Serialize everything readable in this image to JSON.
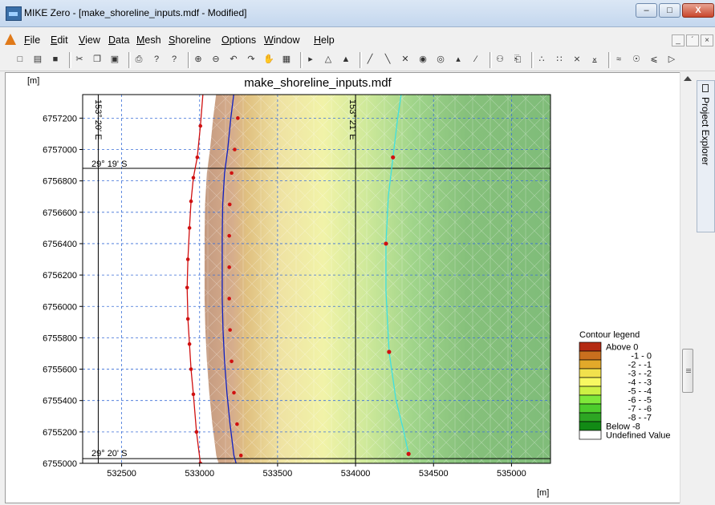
{
  "window": {
    "title": "MIKE Zero - [make_shoreline_inputs.mdf - Modified]",
    "min_symbol": "–",
    "max_symbol": "□",
    "close_symbol": "X"
  },
  "menu": {
    "items": [
      {
        "label": "File",
        "u": "F",
        "rest": "ile"
      },
      {
        "label": "Edit",
        "u": "E",
        "rest": "dit"
      },
      {
        "label": "View",
        "u": "V",
        "rest": "iew"
      },
      {
        "label": "Data",
        "u": "D",
        "rest": "ata"
      },
      {
        "label": "Mesh",
        "u": "M",
        "rest": "esh"
      },
      {
        "label": "Shoreline",
        "u": "S",
        "rest": "horeline"
      },
      {
        "label": "Options",
        "u": "O",
        "rest": "ptions"
      },
      {
        "label": "Window",
        "u": "W",
        "rest": "indow"
      },
      {
        "label": "Help",
        "u": "H",
        "rest": "elp"
      }
    ],
    "mdi_min": "_",
    "mdi_restore": "´",
    "mdi_close": "×"
  },
  "toolbar": {
    "icons": [
      "new-icon",
      "open-icon",
      "save-icon",
      "cut-icon",
      "copy-icon",
      "paste-icon",
      "print-icon",
      "help-icon",
      "context-help-icon",
      "zoom-in-icon",
      "zoom-out-icon",
      "zoom-previous-icon",
      "zoom-next-icon",
      "pan-icon",
      "zoom-extent-icon",
      "select-node-icon",
      "select-polygon-icon",
      "select-region-icon",
      "draw-arc-icon",
      "edit-arc-icon",
      "delete-arc-icon",
      "select-points-icon",
      "edit-points-icon",
      "add-node-icon",
      "draw-line-icon",
      "find-icon",
      "print-preview-icon",
      "mesh-generate-icon",
      "mesh-refine-icon",
      "mesh-delete-icon",
      "mesh-export-icon",
      "smooth-icon",
      "interpolate-icon",
      "analyse-icon",
      "next-icon"
    ]
  },
  "plot": {
    "title": "make_shoreline_inputs.mdf",
    "y_unit": "[m]",
    "x_unit": "[m]",
    "lon_labels": [
      "153° 20' E",
      "153° 21' E"
    ],
    "lat_labels": [
      "29° 19' S",
      "29° 20' S"
    ]
  },
  "chart_data": {
    "type": "heatmap",
    "title": "make_shoreline_inputs.mdf",
    "xlabel": "[m]",
    "ylabel": "[m]",
    "xlim": [
      532250,
      535250
    ],
    "ylim": [
      6755000,
      6757350
    ],
    "x_ticks": [
      532500,
      533000,
      533500,
      534000,
      534500,
      535000
    ],
    "y_ticks": [
      6755000,
      6755200,
      6755400,
      6755600,
      6755800,
      6756000,
      6756200,
      6756400,
      6756600,
      6756800,
      6757000,
      6757200
    ],
    "grid": true,
    "colorbar": {
      "title": "Contour legend",
      "entries": [
        {
          "label": "Above  0",
          "color": "#b42a12"
        },
        {
          "label": "-1 -  0",
          "color": "#c96f1e"
        },
        {
          "label": "-2 - -1",
          "color": "#e2a92a"
        },
        {
          "label": "-3 - -2",
          "color": "#f2e14c"
        },
        {
          "label": "-4 - -3",
          "color": "#f8f862"
        },
        {
          "label": "-5 - -4",
          "color": "#cdf044"
        },
        {
          "label": "-6 - -5",
          "color": "#7ee83a"
        },
        {
          "label": "-7 - -6",
          "color": "#4ccd2c"
        },
        {
          "label": "-8 - -7",
          "color": "#2da623"
        },
        {
          "label": "Below -8",
          "color": "#128a15"
        },
        {
          "label": "Undefined Value",
          "color": "#ffffff"
        }
      ]
    },
    "series": [
      {
        "color": "#d01010",
        "points": [
          [
            533025,
            6757400
          ],
          [
            533005,
            6757150
          ],
          [
            532985,
            6756950
          ],
          [
            532960,
            6756820
          ],
          [
            532945,
            6756670
          ],
          [
            532935,
            6756500
          ],
          [
            532925,
            6756300
          ],
          [
            532920,
            6756120
          ],
          [
            532925,
            6755920
          ],
          [
            532935,
            6755760
          ],
          [
            532945,
            6755600
          ],
          [
            532960,
            6755440
          ],
          [
            532980,
            6755200
          ],
          [
            533005,
            6755000
          ]
        ]
      },
      {
        "color": "#1020c0",
        "points": [
          [
            533225,
            6757400
          ],
          [
            533200,
            6757200
          ],
          [
            533180,
            6757000
          ],
          [
            533160,
            6756850
          ],
          [
            533148,
            6756650
          ],
          [
            533145,
            6756450
          ],
          [
            533145,
            6756250
          ],
          [
            533145,
            6756050
          ],
          [
            533150,
            6755850
          ],
          [
            533160,
            6755650
          ],
          [
            533175,
            6755450
          ],
          [
            533195,
            6755250
          ],
          [
            533220,
            6755050
          ],
          [
            533240,
            6754980
          ]
        ]
      },
      {
        "color": "#40e0e0",
        "points": [
          [
            534300,
            6757400
          ],
          [
            534270,
            6757200
          ],
          [
            534240,
            6756950
          ],
          [
            534210,
            6756700
          ],
          [
            534195,
            6756400
          ],
          [
            534195,
            6756100
          ],
          [
            534205,
            6755900
          ],
          [
            534215,
            6755710
          ],
          [
            534260,
            6755400
          ],
          [
            534310,
            6755200
          ],
          [
            534340,
            6755060
          ]
        ]
      }
    ]
  }
}
